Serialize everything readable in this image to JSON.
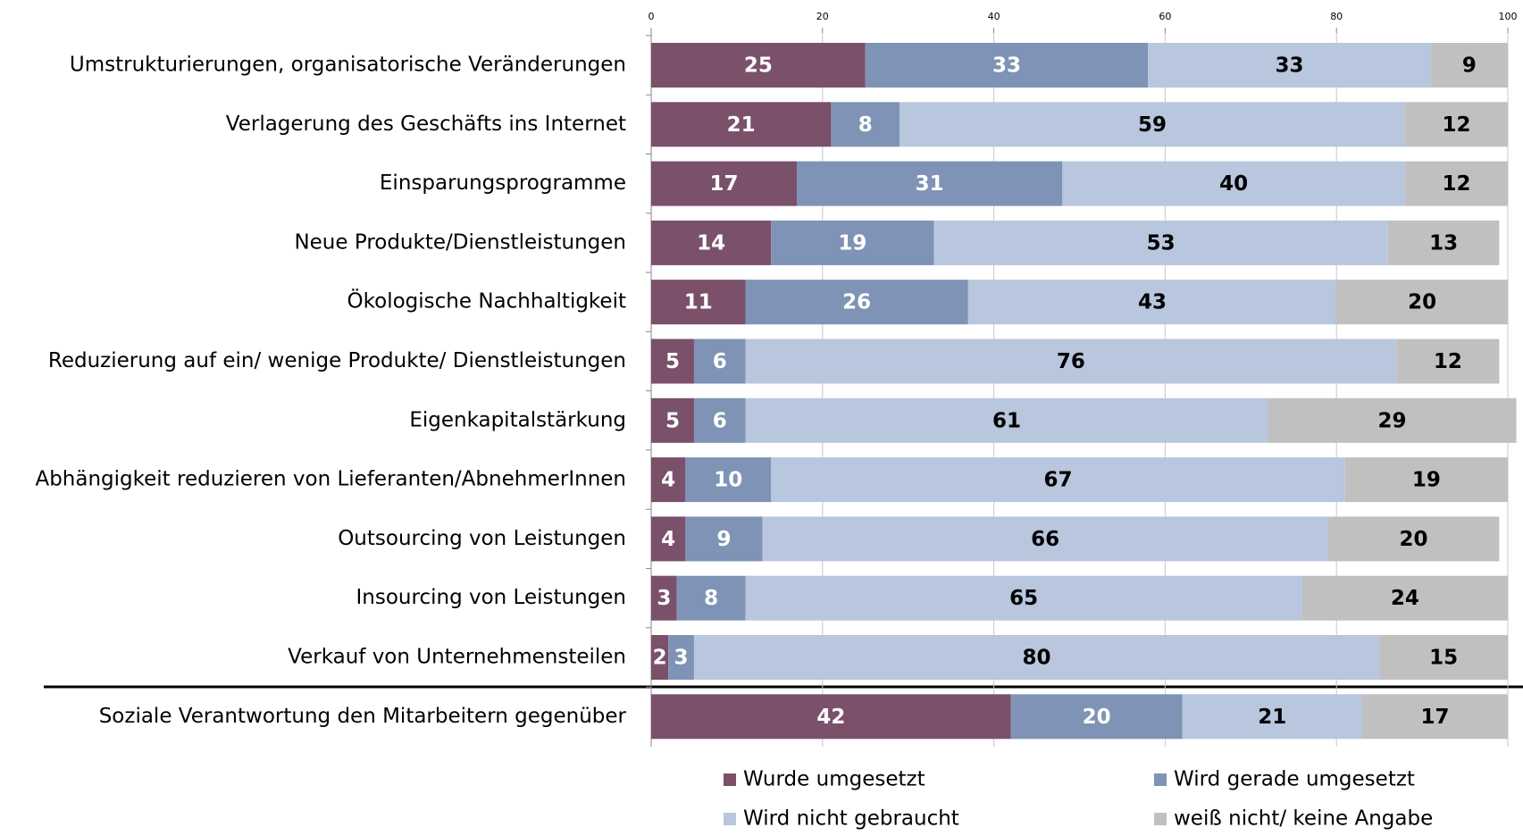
{
  "chart_data": {
    "type": "stacked_bar_horizontal",
    "categories": [
      "Umstrukturierungen, organisatorische Veränderungen",
      "Verlagerung des Geschäfts ins Internet",
      "Einsparungsprogramme",
      "Neue Produkte/Dienstleistungen",
      "Ökologische Nachhaltigkeit",
      "Reduzierung auf ein/ wenige Produkte/ Dienstleistungen",
      "Eigenkapitalstärkung",
      "Abhängigkeit reduzieren von Lieferanten/AbnehmerInnen",
      "Outsourcing von Leistungen",
      "Insourcing von Leistungen",
      "Verkauf von Unternehmensteilen",
      "Soziale Verantwortung den Mitarbeitern gegenüber"
    ],
    "series": [
      {
        "name": "Wurde umgesetzt",
        "color": "#7a506b",
        "values": [
          25,
          21,
          17,
          14,
          11,
          5,
          5,
          4,
          4,
          3,
          2,
          42
        ]
      },
      {
        "name": "Wird gerade umgesetzt",
        "color": "#7f93b6",
        "values": [
          33,
          8,
          31,
          19,
          26,
          6,
          6,
          10,
          9,
          8,
          3,
          20
        ]
      },
      {
        "name": "Wird nicht gebraucht",
        "color": "#b8c6de",
        "values": [
          33,
          59,
          40,
          53,
          43,
          76,
          61,
          67,
          66,
          65,
          80,
          21
        ]
      },
      {
        "name": "weiß nicht/ keine Angabe",
        "color": "#c0c0c0",
        "values": [
          9,
          12,
          12,
          13,
          20,
          12,
          29,
          19,
          20,
          24,
          15,
          17
        ]
      }
    ],
    "xlim": [
      0,
      100
    ],
    "xticks": [
      0,
      20,
      40,
      60,
      80,
      100
    ],
    "grid": true
  }
}
